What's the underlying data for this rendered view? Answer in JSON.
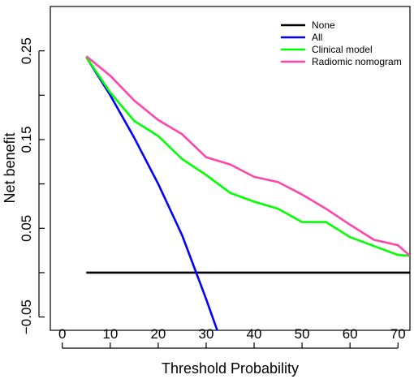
{
  "chart_data": {
    "type": "line",
    "xlabel": "Threshold Probability",
    "ylabel": "Net  benefit",
    "xlim": [
      -2.5,
      72.5
    ],
    "ylim": [
      -0.065,
      0.3
    ],
    "xticks": [
      "0",
      "10",
      "20",
      "30",
      "40",
      "50",
      "60",
      "70"
    ],
    "yticks": [
      "0.25",
      "0.15",
      "0.05",
      "−0.05"
    ],
    "grid": false,
    "legend_position": "top-right",
    "series": [
      {
        "name": "None",
        "color": "#000000",
        "x": [
          5,
          72.5
        ],
        "y": [
          0,
          0
        ]
      },
      {
        "name": "All",
        "color": "#0000ff",
        "x": [
          5,
          10,
          15,
          20,
          25,
          30,
          32.3
        ],
        "y": [
          0.243,
          0.2,
          0.152,
          0.1,
          0.042,
          -0.03,
          -0.065
        ]
      },
      {
        "name": "Clinical model",
        "color": "#00ff00",
        "x": [
          5,
          10,
          15,
          20,
          25,
          30,
          35,
          40,
          45,
          50,
          55,
          60,
          65,
          70,
          72.5
        ],
        "y": [
          0.243,
          0.203,
          0.171,
          0.154,
          0.128,
          0.11,
          0.09,
          0.08,
          0.072,
          0.057,
          0.057,
          0.04,
          0.03,
          0.02,
          0.019
        ]
      },
      {
        "name": "Radiomic nomogram",
        "color": "#ff44aa",
        "x": [
          5,
          10,
          15,
          20,
          25,
          30,
          35,
          40,
          45,
          50,
          55,
          60,
          65,
          70,
          72.5
        ],
        "y": [
          0.244,
          0.222,
          0.194,
          0.172,
          0.156,
          0.13,
          0.122,
          0.108,
          0.102,
          0.088,
          0.072,
          0.054,
          0.037,
          0.031,
          0.019
        ]
      }
    ]
  }
}
